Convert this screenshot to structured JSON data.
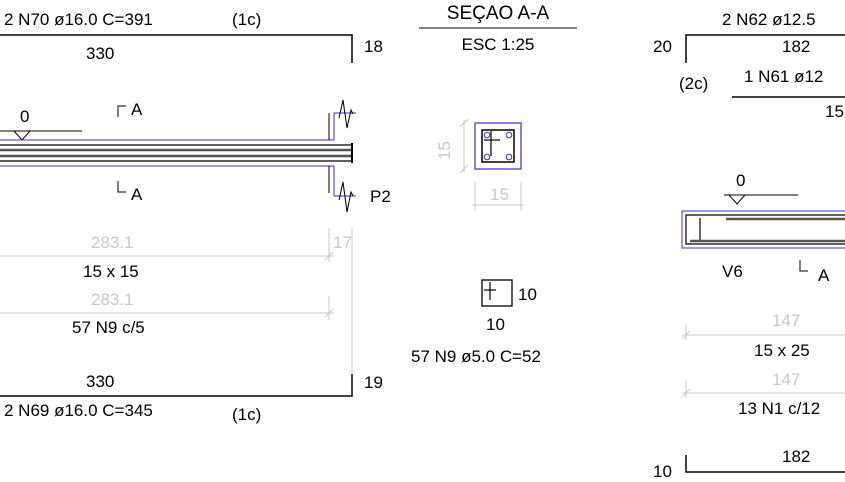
{
  "colors": {
    "ink": "#000000",
    "outline": "#3333cc",
    "dimension": "#c8c8c8",
    "background": "#ffffff"
  },
  "left_beam": {
    "top_bar_label": "2 N70 ø16.0  C=391",
    "top_layer": "(1c)",
    "top_length": "330",
    "top_hook": "18",
    "level_mark": "0",
    "section_mark_top": "A",
    "section_mark_bottom": "A",
    "support_label": "P2",
    "clear_span_1": "283.1",
    "end_offset": "17",
    "section_size": "15 x 15",
    "clear_span_2": "283.1",
    "stirrup_spacing": "57 N9 c/5",
    "bottom_length": "330",
    "bottom_hook": "19",
    "bottom_bar_label": "2 N69 ø16.0  C=345",
    "bottom_layer": "(1c)"
  },
  "section": {
    "title": "SEÇAO A-A",
    "scale": "ESC 1:25",
    "height": "15",
    "width": "15"
  },
  "stirrup_detail": {
    "side": "10",
    "base": "10",
    "label": "57 N9 ø5.0  C=52"
  },
  "right_beam": {
    "top_bar_label": "2 N62 ø12.5",
    "top_hook": "20",
    "top_length": "182",
    "second_layer": "(2c)",
    "second_bar_label": "1 N61 ø12",
    "second_length": "15",
    "level_mark": "0",
    "beam_name": "V6",
    "section_mark": "A",
    "clear_span_1": "147",
    "section_size": "15 x 25",
    "clear_span_2": "147",
    "stirrup_spacing": "13 N1 c/12",
    "bottom_hook": "10",
    "bottom_length": "182"
  }
}
